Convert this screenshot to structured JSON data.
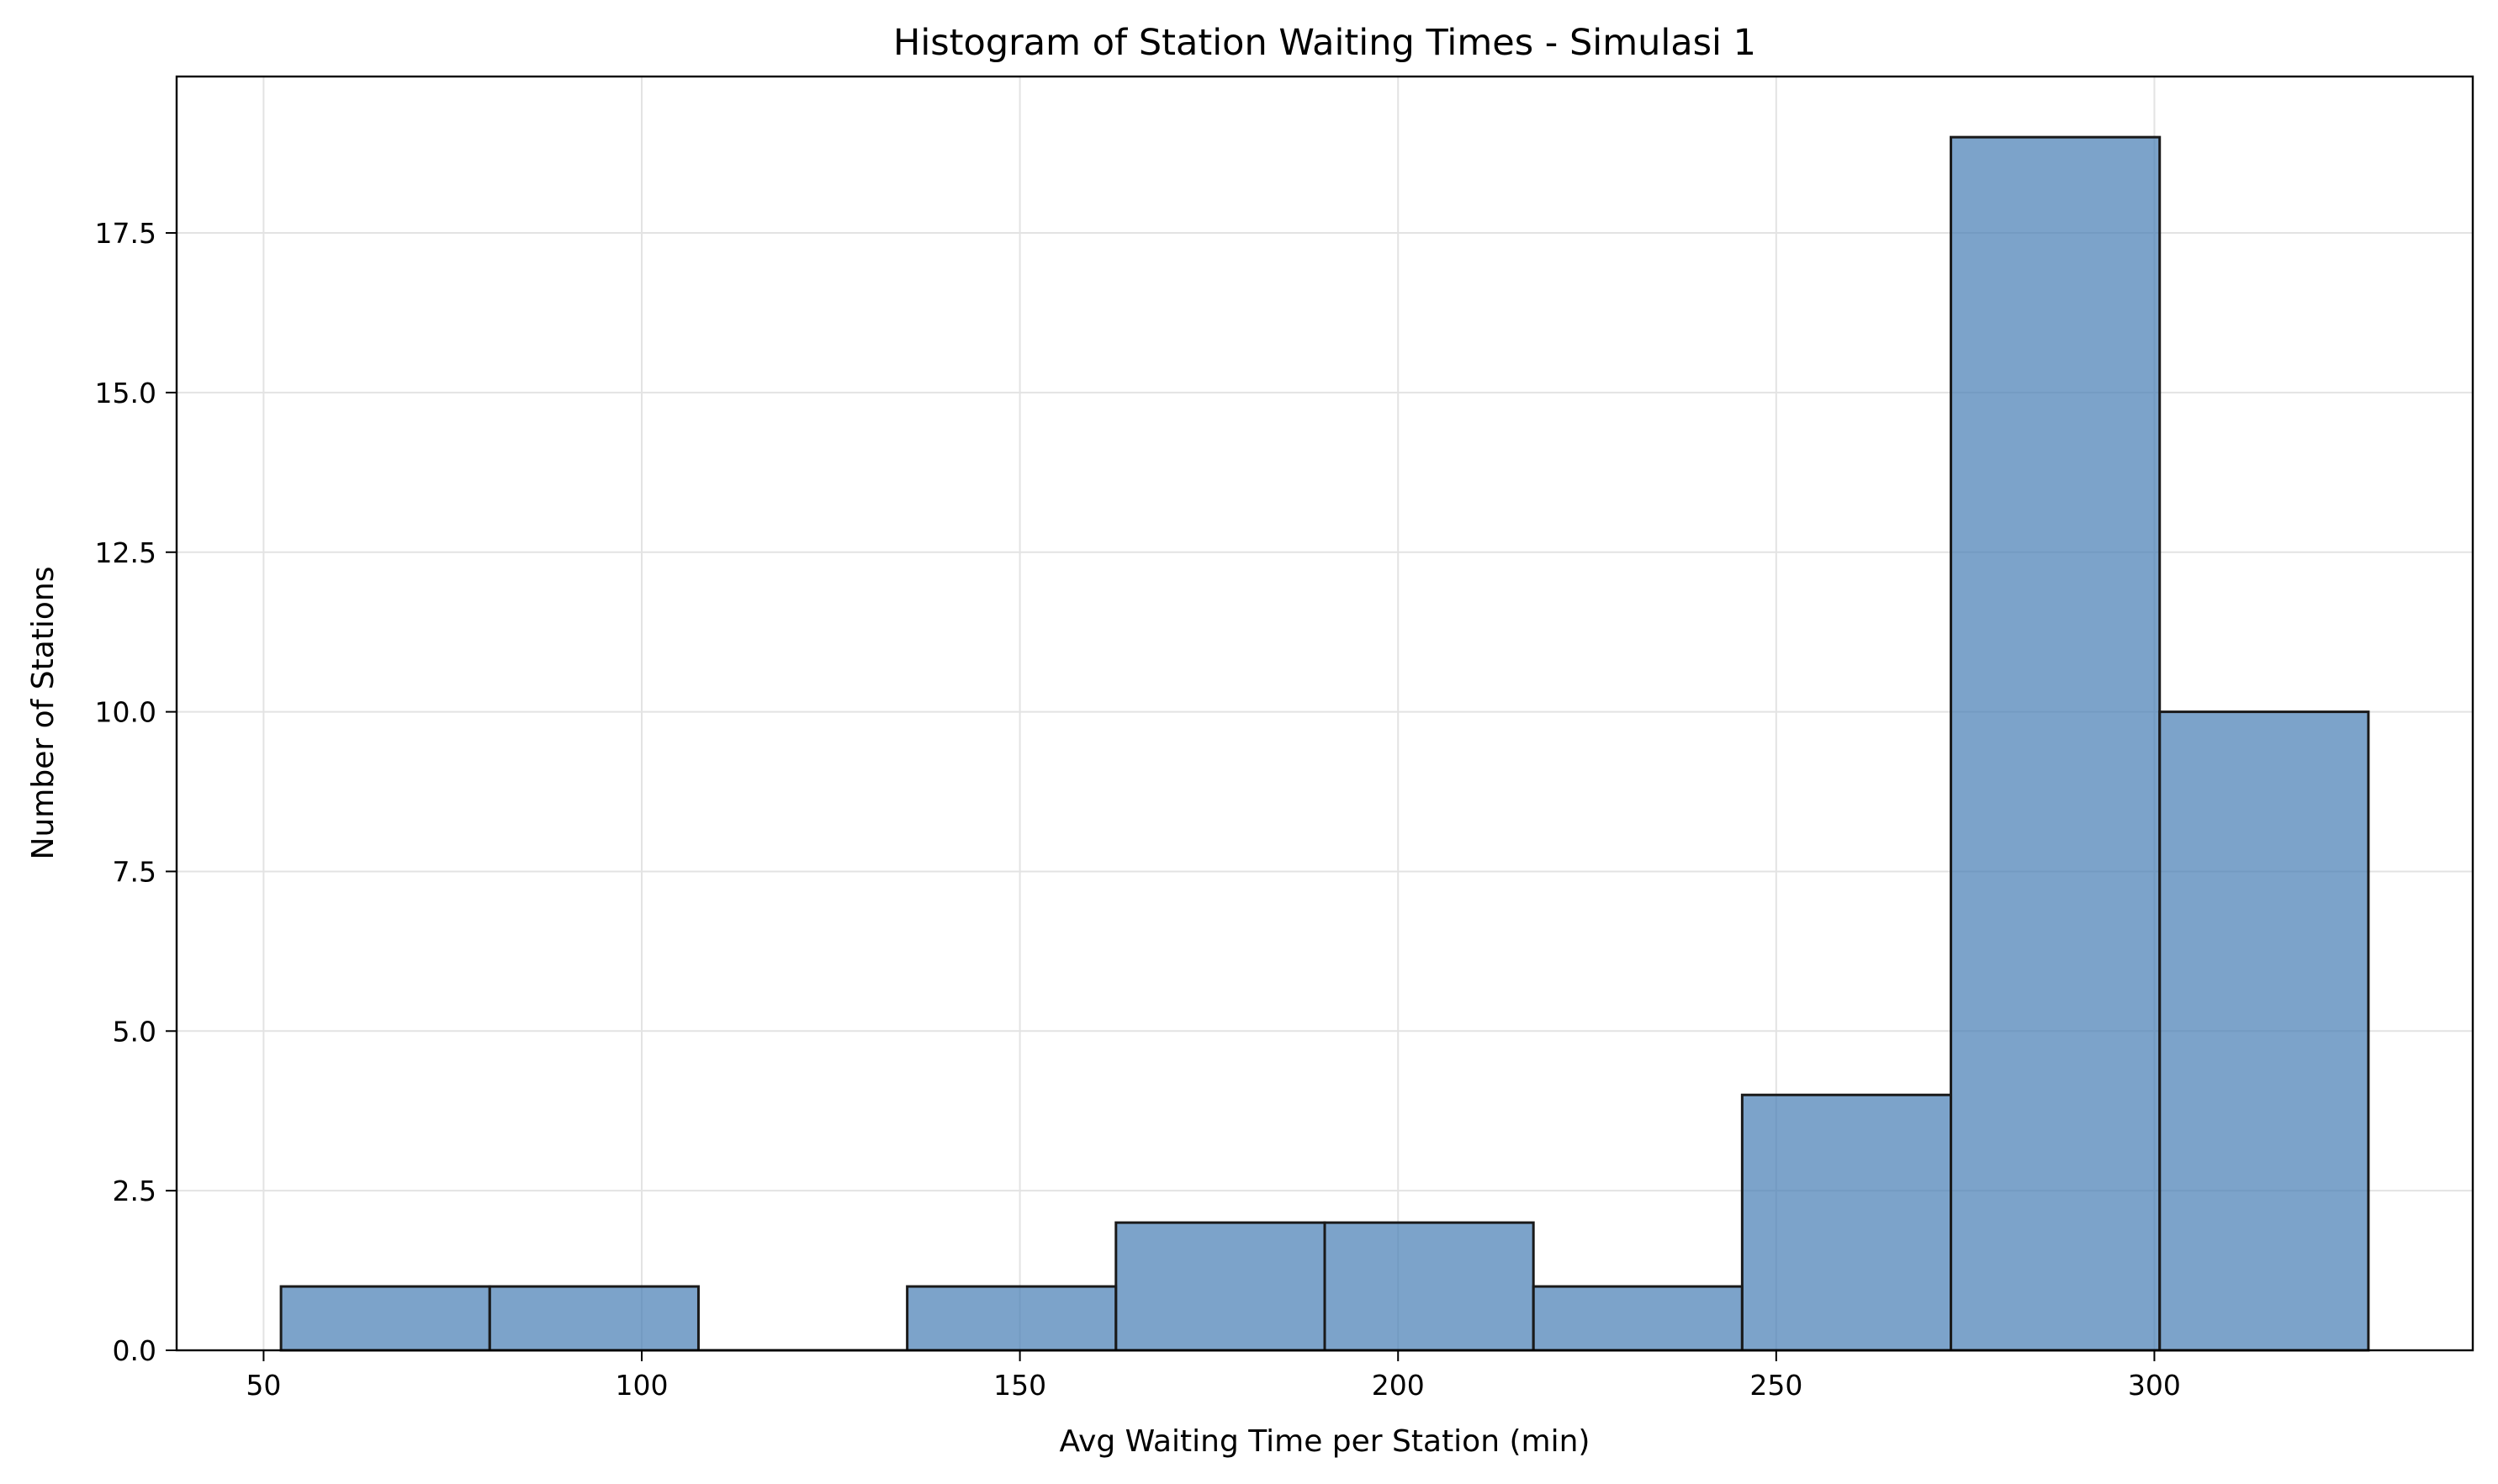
{
  "chart_data": {
    "type": "bar",
    "title": "Histogram of Station Waiting Times - Simulasi 1",
    "xlabel": "Avg Waiting Time per Station (min)",
    "ylabel": "Number of Stations",
    "bin_edges": [
      52.3,
      79.9,
      107.5,
      135.1,
      162.7,
      190.3,
      217.9,
      245.5,
      273.1,
      300.7,
      328.3
    ],
    "values": [
      1,
      1,
      0,
      1,
      2,
      2,
      1,
      4,
      19,
      10
    ],
    "xlim": [
      38.5,
      342.1
    ],
    "ylim": [
      0,
      19.95
    ],
    "xticks": [
      50,
      100,
      150,
      200,
      250,
      300
    ],
    "xtick_labels": [
      "50",
      "100",
      "150",
      "200",
      "250",
      "300"
    ],
    "yticks": [
      0,
      2.5,
      5,
      7.5,
      10,
      12.5,
      15,
      17.5
    ],
    "ytick_labels": [
      "0.0",
      "2.5",
      "5.0",
      "7.5",
      "10.0",
      "12.5",
      "15.0",
      "17.5"
    ],
    "grid": true,
    "colors": {
      "bar_fill": "#4a80b5",
      "bar_edge": "#1a1a1a",
      "grid": "#e3e3e3"
    }
  }
}
